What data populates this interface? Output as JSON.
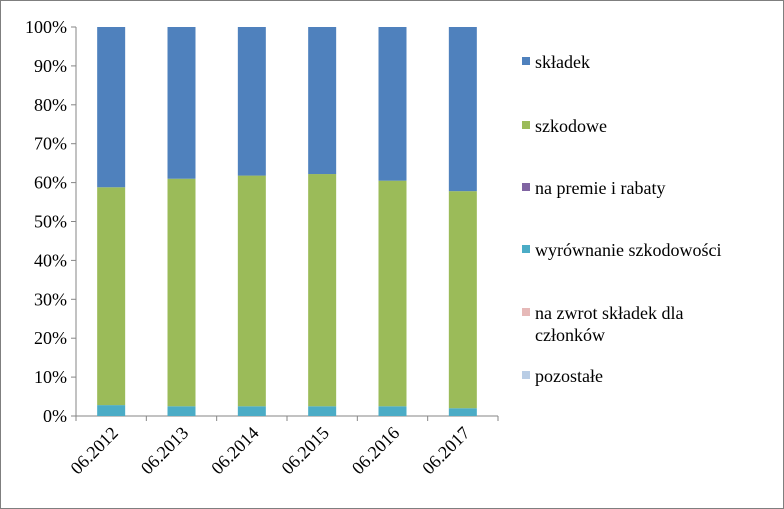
{
  "chart_data": {
    "type": "bar",
    "stacked": true,
    "percent": true,
    "title": "",
    "xlabel": "",
    "ylabel": "",
    "ylim": [
      0,
      100
    ],
    "y_ticks": [
      "0%",
      "10%",
      "20%",
      "30%",
      "40%",
      "50%",
      "60%",
      "70%",
      "80%",
      "90%",
      "100%"
    ],
    "grid": false,
    "legend_position": "right",
    "categories": [
      "06.2012",
      "06.2013",
      "06.2014",
      "06.2015",
      "06.2016",
      "06.2017"
    ],
    "series": [
      {
        "name": "pozostałe",
        "color": "#b9cde5",
        "values": [
          0,
          0,
          0,
          0,
          0,
          0
        ]
      },
      {
        "name": "na zwrot składek dla członków",
        "color": "#e6b9b8",
        "values": [
          0,
          0,
          0,
          0,
          0,
          0
        ]
      },
      {
        "name": "wyrównanie szkodowości",
        "color": "#4bacc6",
        "values": [
          2.8,
          2.5,
          2.5,
          2.5,
          2.5,
          2.0
        ]
      },
      {
        "name": "na premie i rabaty",
        "color": "#8064a2",
        "values": [
          0,
          0,
          0,
          0,
          0,
          0
        ]
      },
      {
        "name": "szkodowe",
        "color": "#9bbb59",
        "values": [
          56.0,
          58.5,
          59.3,
          59.7,
          58.0,
          55.8
        ]
      },
      {
        "name": "składek",
        "color": "#4f81bd",
        "values": [
          41.2,
          39.0,
          38.2,
          37.8,
          39.5,
          42.2
        ]
      }
    ],
    "legend_order": [
      "składek",
      "szkodowe",
      "na premie i rabaty",
      "wyrównanie szkodowości",
      "na zwrot składek dla członków",
      "pozostałe"
    ]
  }
}
